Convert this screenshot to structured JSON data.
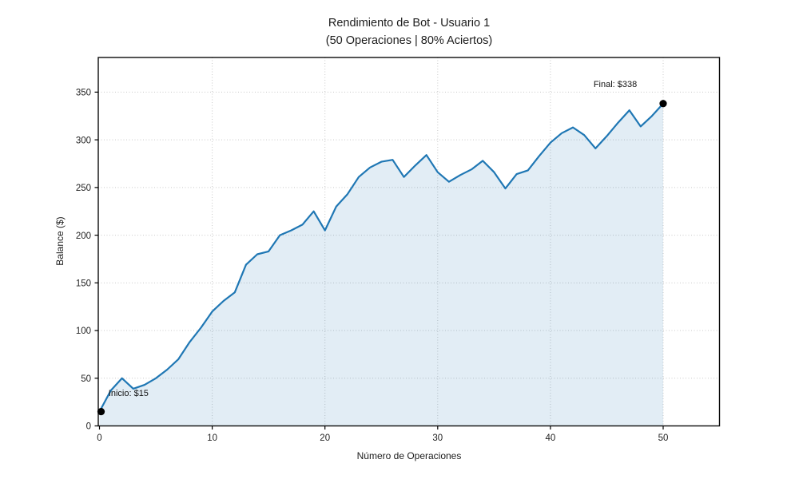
{
  "page": {
    "background": "#ffffff"
  },
  "chart_data": {
    "type": "area",
    "title_line1": "Rendimiento de Bot - Usuario 1",
    "title_line2": "(50 Operaciones | 80% Aciertos)",
    "xlabel": "Número de Operaciones",
    "ylabel": "Balance ($)",
    "x": [
      0,
      1,
      2,
      3,
      4,
      5,
      6,
      7,
      8,
      9,
      10,
      11,
      12,
      13,
      14,
      15,
      16,
      17,
      18,
      19,
      20,
      21,
      22,
      23,
      24,
      25,
      26,
      27,
      28,
      29,
      30,
      31,
      32,
      33,
      34,
      35,
      36,
      37,
      38,
      39,
      40,
      41,
      42,
      43,
      44,
      45,
      46,
      47,
      48,
      49,
      50
    ],
    "series": [
      {
        "name": "Balance",
        "values": [
          15,
          37,
          50,
          39,
          43,
          50,
          59,
          70,
          88,
          103,
          120,
          131,
          140,
          169,
          180,
          183,
          200,
          205,
          211,
          225,
          205,
          230,
          243,
          261,
          271,
          277,
          279,
          261,
          273,
          284,
          266,
          256,
          263,
          269,
          278,
          266,
          249,
          264,
          268,
          283,
          297,
          307,
          313,
          305,
          291,
          304,
          318,
          331,
          314,
          325,
          338
        ]
      }
    ],
    "xticks": [
      0,
      10,
      20,
      30,
      40,
      50
    ],
    "yticks": [
      0,
      50,
      100,
      150,
      200,
      250,
      300,
      350
    ],
    "xlim": [
      0,
      55
    ],
    "ylim": [
      0,
      387
    ],
    "grid": true,
    "grid_style": "dotted",
    "legend": "none",
    "line_color": "#1f77b4",
    "fill_color": "rgba(31,119,180,0.13)",
    "marker_color": "#000000",
    "grid_color": "#c9c9c9",
    "spine_color": "#0a0a0a",
    "start_value": 15,
    "final_value": 338,
    "annotations": [
      {
        "text": "Inicio: $15",
        "x_op": 0.8,
        "y_val": 31.5,
        "anchor": "start"
      },
      {
        "text": "Final: $338",
        "x_op": 45.75,
        "y_val": 355.5,
        "anchor": "middle"
      }
    ],
    "markers": [
      {
        "x_op": 0,
        "y_val": 15,
        "x_nudge": 2
      },
      {
        "x_op": 50,
        "y_val": 338,
        "x_nudge": 0
      }
    ]
  }
}
